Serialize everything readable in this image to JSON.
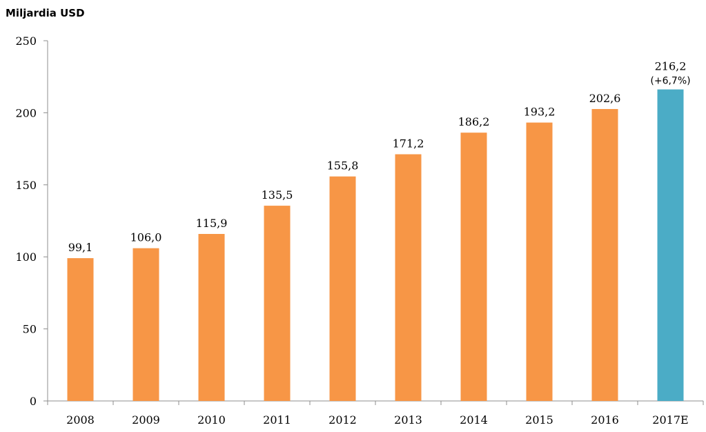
{
  "chart_data": {
    "type": "bar",
    "title": "",
    "unit_label": "Miljardia USD",
    "xlabel": "",
    "ylabel": "",
    "categories": [
      "2008",
      "2009",
      "2010",
      "2011",
      "2012",
      "2013",
      "2014",
      "2015",
      "2016",
      "2017E"
    ],
    "values": [
      99.1,
      106.0,
      115.9,
      135.5,
      155.8,
      171.2,
      186.2,
      193.2,
      202.6,
      216.2
    ],
    "data_labels": [
      "99,1",
      "106,0",
      "115,9",
      "135,5",
      "155,8",
      "171,2",
      "186,2",
      "193,2",
      "202,6",
      "216,2"
    ],
    "data_sublabels": [
      "",
      "",
      "",
      "",
      "",
      "",
      "",
      "",
      "",
      "(+6,7%)"
    ],
    "ylim": [
      0,
      250
    ],
    "yticks": [
      0,
      50,
      100,
      150,
      200,
      250
    ],
    "grid": false,
    "legend": "none",
    "colors": {
      "actual": "#F79646",
      "estimate": "#4BACC6",
      "axis": "#8C8C8C"
    },
    "bar_color_keys": [
      "actual",
      "actual",
      "actual",
      "actual",
      "actual",
      "actual",
      "actual",
      "actual",
      "actual",
      "estimate"
    ]
  }
}
